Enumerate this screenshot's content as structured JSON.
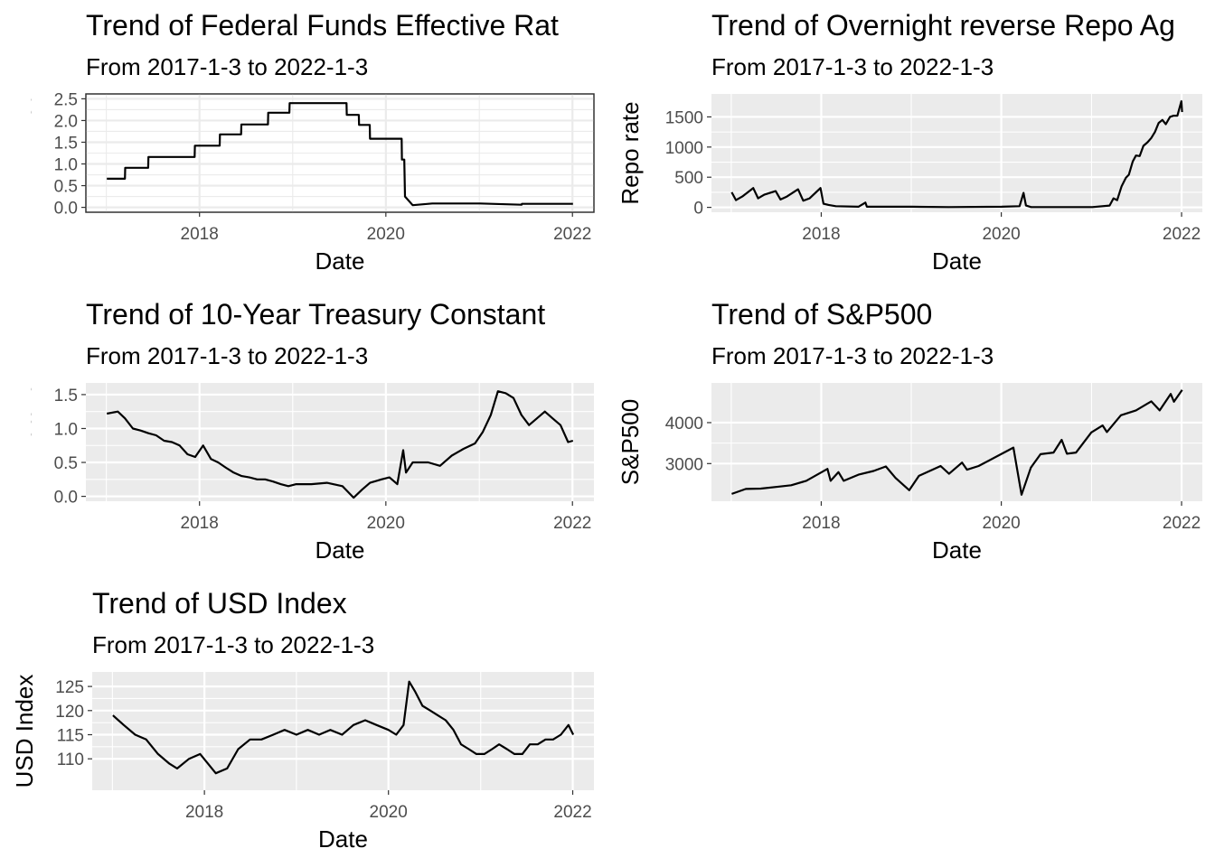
{
  "chart_data": [
    {
      "type": "line",
      "title": "Trend of Federal Funds Effective Rat",
      "subtitle": "From 2017-1-3 to 2022-1-3",
      "xlabel": "Date",
      "ylabel": "Federal Funds Effective Rate",
      "xlim": [
        "2017-01-03",
        "2022-01-03"
      ],
      "ylim": [
        0,
        2.5
      ],
      "x_ticks": [
        "2018",
        "2020",
        "2022"
      ],
      "y_ticks": [
        "0.0",
        "0.5",
        "1.0",
        "1.5",
        "2.0",
        "2.5"
      ],
      "theme": "bw",
      "grid": true,
      "series": [
        {
          "x": [
            "2017-01-03",
            "2017-03-15",
            "2017-03-16",
            "2017-06-14",
            "2017-06-15",
            "2017-12-13",
            "2017-12-14",
            "2018-03-21",
            "2018-03-22",
            "2018-06-13",
            "2018-06-14",
            "2018-09-26",
            "2018-09-27",
            "2018-12-19",
            "2018-12-20",
            "2019-07-31",
            "2019-08-01",
            "2019-09-17",
            "2019-09-18",
            "2019-10-30",
            "2019-10-31",
            "2020-02-28",
            "2020-03-03",
            "2020-03-04",
            "2020-03-13",
            "2020-03-16",
            "2020-04-15",
            "2020-07-01",
            "2021-01-04",
            "2021-06-16",
            "2021-06-17",
            "2022-01-03"
          ],
          "y": [
            0.66,
            0.66,
            0.91,
            0.91,
            1.16,
            1.16,
            1.42,
            1.42,
            1.68,
            1.68,
            1.91,
            1.91,
            2.18,
            2.18,
            2.4,
            2.4,
            2.13,
            2.13,
            1.9,
            1.9,
            1.58,
            1.58,
            1.58,
            1.1,
            1.1,
            0.25,
            0.05,
            0.09,
            0.09,
            0.06,
            0.08,
            0.08
          ]
        }
      ]
    },
    {
      "type": "line",
      "title": "Trend of Overnight reverse Repo Ag",
      "subtitle": "From 2017-1-3 to 2022-1-3",
      "xlabel": "Date",
      "ylabel": "Repo rate",
      "xlim": [
        "2017-01-03",
        "2022-01-03"
      ],
      "ylim": [
        0,
        1800
      ],
      "x_ticks": [
        "2018",
        "2020",
        "2022"
      ],
      "y_ticks": [
        "0",
        "500",
        "1000",
        "1500"
      ],
      "theme": "grey",
      "grid": true,
      "series": [
        {
          "x": [
            "2017-01-03",
            "2017-01-20",
            "2017-02-15",
            "2017-03-31",
            "2017-04-20",
            "2017-05-15",
            "2017-06-30",
            "2017-07-20",
            "2017-08-15",
            "2017-09-29",
            "2017-10-20",
            "2017-11-15",
            "2017-12-29",
            "2018-01-10",
            "2018-01-31",
            "2018-03-01",
            "2018-06-01",
            "2018-06-29",
            "2018-07-05",
            "2019-01-02",
            "2019-06-01",
            "2020-01-02",
            "2020-03-15",
            "2020-03-31",
            "2020-04-10",
            "2020-05-01",
            "2021-01-04",
            "2021-03-15",
            "2021-03-31",
            "2021-04-15",
            "2021-05-03",
            "2021-05-20",
            "2021-06-01",
            "2021-06-17",
            "2021-06-30",
            "2021-07-15",
            "2021-07-30",
            "2021-08-16",
            "2021-08-31",
            "2021-09-15",
            "2021-09-30",
            "2021-10-15",
            "2021-10-29",
            "2021-11-15",
            "2021-11-30",
            "2021-12-15",
            "2021-12-31",
            "2022-01-03"
          ],
          "y": [
            250,
            120,
            180,
            320,
            150,
            210,
            270,
            130,
            180,
            300,
            110,
            150,
            320,
            60,
            40,
            20,
            10,
            80,
            10,
            10,
            5,
            10,
            20,
            240,
            30,
            5,
            5,
            30,
            150,
            120,
            350,
            490,
            540,
            760,
            860,
            850,
            1020,
            1080,
            1150,
            1250,
            1400,
            1450,
            1380,
            1500,
            1520,
            1520,
            1760,
            1580
          ]
        }
      ]
    },
    {
      "type": "line",
      "title": "Trend of 10-Year Treasury Constant",
      "subtitle": "From 2017-1-3 to 2022-1-3",
      "xlabel": "Date",
      "ylabel": "y Constant Maturity Minus",
      "xlim": [
        "2017-01-03",
        "2022-01-03"
      ],
      "ylim": [
        0,
        1.6
      ],
      "x_ticks": [
        "2018",
        "2020",
        "2022"
      ],
      "y_ticks": [
        "0.0",
        "0.5",
        "1.0",
        "1.5"
      ],
      "theme": "grey",
      "grid": true,
      "series": [
        {
          "x": [
            "2017-01-03",
            "2017-02-15",
            "2017-03-15",
            "2017-04-15",
            "2017-05-15",
            "2017-06-15",
            "2017-07-15",
            "2017-08-15",
            "2017-09-15",
            "2017-10-15",
            "2017-11-15",
            "2017-12-15",
            "2018-01-15",
            "2018-02-15",
            "2018-03-15",
            "2018-04-15",
            "2018-05-15",
            "2018-06-15",
            "2018-07-15",
            "2018-08-15",
            "2018-09-15",
            "2018-10-15",
            "2018-11-15",
            "2018-12-15",
            "2019-01-15",
            "2019-03-15",
            "2019-05-15",
            "2019-07-15",
            "2019-08-28",
            "2019-09-30",
            "2019-10-31",
            "2019-12-15",
            "2020-01-15",
            "2020-02-15",
            "2020-03-09",
            "2020-03-20",
            "2020-04-15",
            "2020-06-15",
            "2020-07-31",
            "2020-09-15",
            "2020-10-31",
            "2020-12-15",
            "2021-01-15",
            "2021-02-15",
            "2021-03-15",
            "2021-04-15",
            "2021-05-15",
            "2021-06-15",
            "2021-07-15",
            "2021-08-15",
            "2021-09-15",
            "2021-10-15",
            "2021-11-15",
            "2021-12-15",
            "2022-01-03"
          ],
          "y": [
            1.22,
            1.25,
            1.15,
            1.0,
            0.97,
            0.93,
            0.9,
            0.82,
            0.8,
            0.75,
            0.62,
            0.58,
            0.75,
            0.55,
            0.5,
            0.42,
            0.35,
            0.3,
            0.28,
            0.25,
            0.25,
            0.22,
            0.18,
            0.15,
            0.18,
            0.18,
            0.2,
            0.15,
            -0.02,
            0.1,
            0.2,
            0.25,
            0.28,
            0.18,
            0.68,
            0.35,
            0.5,
            0.5,
            0.45,
            0.6,
            0.7,
            0.78,
            0.95,
            1.2,
            1.55,
            1.52,
            1.45,
            1.2,
            1.05,
            1.15,
            1.25,
            1.15,
            1.05,
            0.8,
            0.82
          ]
        }
      ]
    },
    {
      "type": "line",
      "title": "Trend of S&P500",
      "subtitle": "From 2017-1-3 to 2022-1-3",
      "xlabel": "Date",
      "ylabel": "S&P500",
      "xlim": [
        "2017-01-03",
        "2022-01-03"
      ],
      "ylim": [
        2200,
        4850
      ],
      "x_ticks": [
        "2018",
        "2020",
        "2022"
      ],
      "y_ticks": [
        "3000",
        "4000"
      ],
      "theme": "grey",
      "grid": true,
      "series": [
        {
          "x": [
            "2017-01-03",
            "2017-03-01",
            "2017-05-01",
            "2017-07-01",
            "2017-09-01",
            "2017-11-01",
            "2018-01-26",
            "2018-02-08",
            "2018-03-12",
            "2018-04-02",
            "2018-06-01",
            "2018-08-01",
            "2018-09-20",
            "2018-10-29",
            "2018-12-24",
            "2019-02-01",
            "2019-04-30",
            "2019-06-03",
            "2019-07-26",
            "2019-08-15",
            "2019-10-01",
            "2019-12-31",
            "2020-02-19",
            "2020-03-23",
            "2020-04-30",
            "2020-06-08",
            "2020-07-31",
            "2020-09-02",
            "2020-09-23",
            "2020-10-30",
            "2020-12-31",
            "2021-02-15",
            "2021-03-04",
            "2021-04-30",
            "2021-06-30",
            "2021-08-31",
            "2021-10-04",
            "2021-11-18",
            "2021-12-01",
            "2021-12-31",
            "2022-01-03"
          ],
          "y": [
            2260,
            2380,
            2390,
            2430,
            2470,
            2580,
            2870,
            2580,
            2790,
            2580,
            2730,
            2820,
            2930,
            2650,
            2350,
            2700,
            2940,
            2750,
            3025,
            2850,
            2940,
            3230,
            3390,
            2240,
            2900,
            3230,
            3270,
            3580,
            3240,
            3270,
            3760,
            3930,
            3770,
            4180,
            4300,
            4520,
            4300,
            4700,
            4510,
            4770,
            4800
          ]
        }
      ]
    },
    {
      "type": "line",
      "title": "Trend of USD Index",
      "subtitle": "From 2017-1-3 to 2022-1-3",
      "xlabel": "Date",
      "ylabel": "USD Index",
      "xlim": [
        "2017-01-03",
        "2022-01-03"
      ],
      "ylim": [
        104.5,
        127
      ],
      "x_ticks": [
        "2018",
        "2020",
        "2022"
      ],
      "y_ticks": [
        "110",
        "115",
        "120",
        "125"
      ],
      "theme": "grey",
      "grid": true,
      "series": [
        {
          "x": [
            "2017-01-03",
            "2017-02-15",
            "2017-04-01",
            "2017-05-15",
            "2017-07-01",
            "2017-08-15",
            "2017-09-15",
            "2017-11-01",
            "2017-12-15",
            "2018-02-15",
            "2018-04-01",
            "2018-05-15",
            "2018-07-01",
            "2018-08-15",
            "2018-10-01",
            "2018-11-15",
            "2019-01-01",
            "2019-02-15",
            "2019-04-01",
            "2019-05-15",
            "2019-07-01",
            "2019-08-15",
            "2019-10-01",
            "2019-11-15",
            "2020-01-01",
            "2020-02-01",
            "2020-03-01",
            "2020-03-23",
            "2020-04-15",
            "2020-05-15",
            "2020-06-15",
            "2020-07-15",
            "2020-08-15",
            "2020-09-15",
            "2020-10-15",
            "2020-11-15",
            "2020-12-15",
            "2021-01-15",
            "2021-02-15",
            "2021-03-15",
            "2021-04-15",
            "2021-05-15",
            "2021-06-15",
            "2021-07-15",
            "2021-08-15",
            "2021-09-15",
            "2021-10-15",
            "2021-11-15",
            "2021-12-15",
            "2022-01-03"
          ],
          "y": [
            119,
            117,
            115,
            114,
            111,
            109,
            108,
            110,
            111,
            107,
            108,
            112,
            114,
            114,
            115,
            116,
            115,
            116,
            115,
            116,
            115,
            117,
            118,
            117,
            116,
            115,
            117,
            126,
            124,
            121,
            120,
            119,
            118,
            116,
            113,
            112,
            111,
            111,
            112,
            113,
            112,
            111,
            111,
            113,
            113,
            114,
            114,
            115,
            117,
            115
          ]
        }
      ]
    }
  ]
}
